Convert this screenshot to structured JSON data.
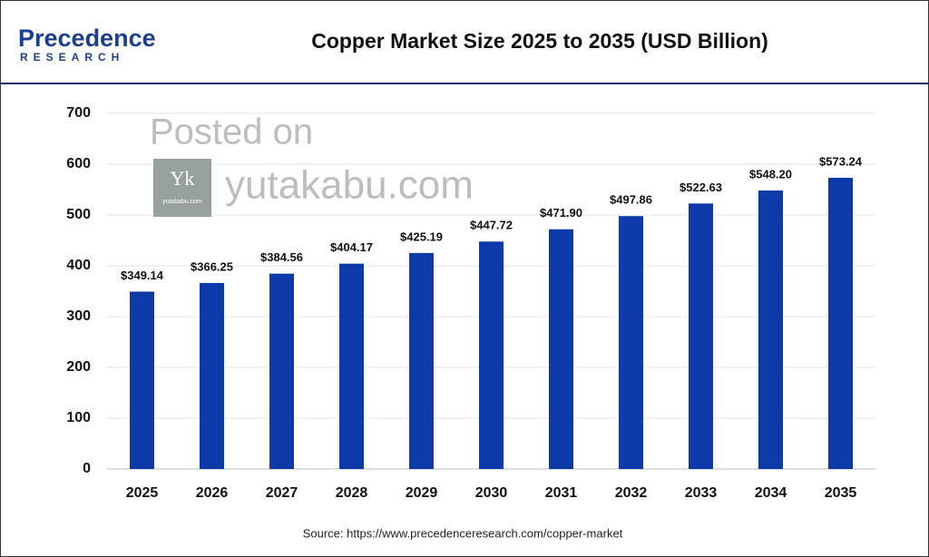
{
  "logo": {
    "name": "Precedence",
    "sub": "RESEARCH"
  },
  "watermark": {
    "line1": "Posted on",
    "line2": "yutakabu.com",
    "badge": "Yk",
    "badge_caption": "yutakabu.com"
  },
  "source": "Source: https://www.precedenceresearch.com/copper-market",
  "chart_data": {
    "type": "bar",
    "title": "Copper Market Size 2025 to 2035 (USD Billion)",
    "categories": [
      "2025",
      "2026",
      "2027",
      "2028",
      "2029",
      "2030",
      "2031",
      "2032",
      "2033",
      "2034",
      "2035"
    ],
    "values": [
      349.14,
      366.25,
      384.56,
      404.17,
      425.19,
      447.72,
      471.9,
      497.86,
      522.63,
      548.2,
      573.24
    ],
    "value_labels": [
      "$349.14",
      "$366.25",
      "$384.56",
      "$404.17",
      "$425.19",
      "$447.72",
      "$471.90",
      "$497.86",
      "$522.63",
      "$548.20",
      "$573.24"
    ],
    "color": "#0d3aa9",
    "ylim": [
      0,
      700
    ],
    "yticks": [
      0,
      100,
      200,
      300,
      400,
      500,
      600,
      700
    ],
    "grid": true
  }
}
